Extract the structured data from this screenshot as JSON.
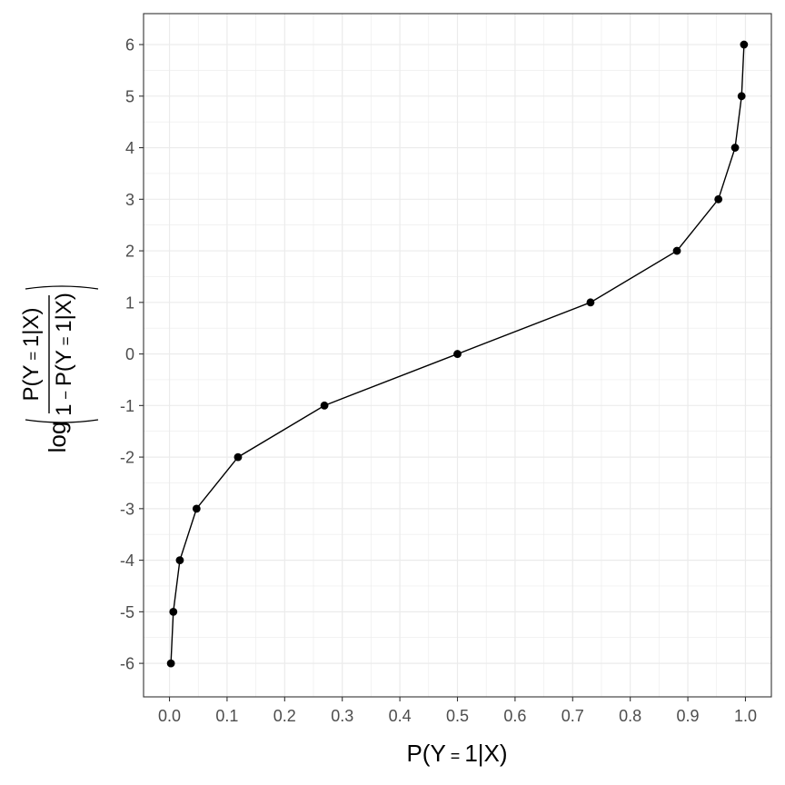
{
  "chart_data": {
    "type": "line",
    "xlabel": {
      "prefix": "P(Y",
      "eq": " = ",
      "one": "1",
      "bar": "|",
      "x_suffix": "X)"
    },
    "ylabel": {
      "log": "log",
      "numerator": {
        "prefix": "P(Y",
        "eq": " = ",
        "one": "1",
        "bar": "|",
        "x_suffix": "X)"
      },
      "denominator": {
        "lead": "1",
        "minus": " − ",
        "prefix": "P(Y",
        "eq": " = ",
        "one": "1",
        "bar": "|",
        "x_suffix": "X)"
      }
    },
    "x_ticks": [
      "0.0",
      "0.1",
      "0.2",
      "0.3",
      "0.4",
      "0.5",
      "0.6",
      "0.7",
      "0.8",
      "0.9",
      "1.0"
    ],
    "y_ticks": [
      "-6",
      "-5",
      "-4",
      "-3",
      "-2",
      "-1",
      "0",
      "1",
      "2",
      "3",
      "4",
      "5",
      "6"
    ],
    "xlim": [
      -0.045,
      1.045
    ],
    "ylim": [
      -6.65,
      6.6
    ],
    "grid": true,
    "series": [
      {
        "x": [
          0.0025,
          0.0067,
          0.018,
          0.047,
          0.119,
          0.269,
          0.5,
          0.731,
          0.881,
          0.953,
          0.982,
          0.9933,
          0.9975
        ],
        "y": [
          -6,
          -5,
          -4,
          -3,
          -2,
          -1,
          0,
          1,
          2,
          3,
          4,
          5,
          6
        ]
      }
    ],
    "colors": {
      "line": "#000000",
      "point": "#000000",
      "grid": "#ebebeb",
      "border": "#333333",
      "tick_text": "#4d4d4d"
    }
  }
}
